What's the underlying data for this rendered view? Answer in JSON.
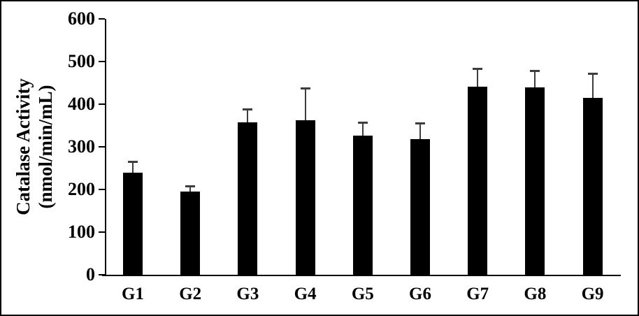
{
  "chart_data": {
    "type": "bar",
    "title": "",
    "categories": [
      "G1",
      "G2",
      "G3",
      "G4",
      "G5",
      "G6",
      "G7",
      "G8",
      "G9"
    ],
    "values": [
      240,
      195,
      357,
      363,
      327,
      318,
      441,
      439,
      415
    ],
    "errors_upper": [
      25,
      13,
      32,
      74,
      30,
      38,
      42,
      40,
      57
    ],
    "ylabel_line1": "Catalase Activity",
    "ylabel_line2": "(nmol/min/mL)",
    "xlabel": "",
    "y_ticks": [
      0,
      100,
      200,
      300,
      400,
      500,
      600
    ],
    "ylim": [
      0,
      600
    ],
    "grid": "off",
    "legend": "none",
    "bar_color": "#000000",
    "error_bar_color": "#3d3d3d",
    "axis_color": "#000000",
    "frame_border_color": "#000000",
    "background_color": "#ffffff"
  }
}
